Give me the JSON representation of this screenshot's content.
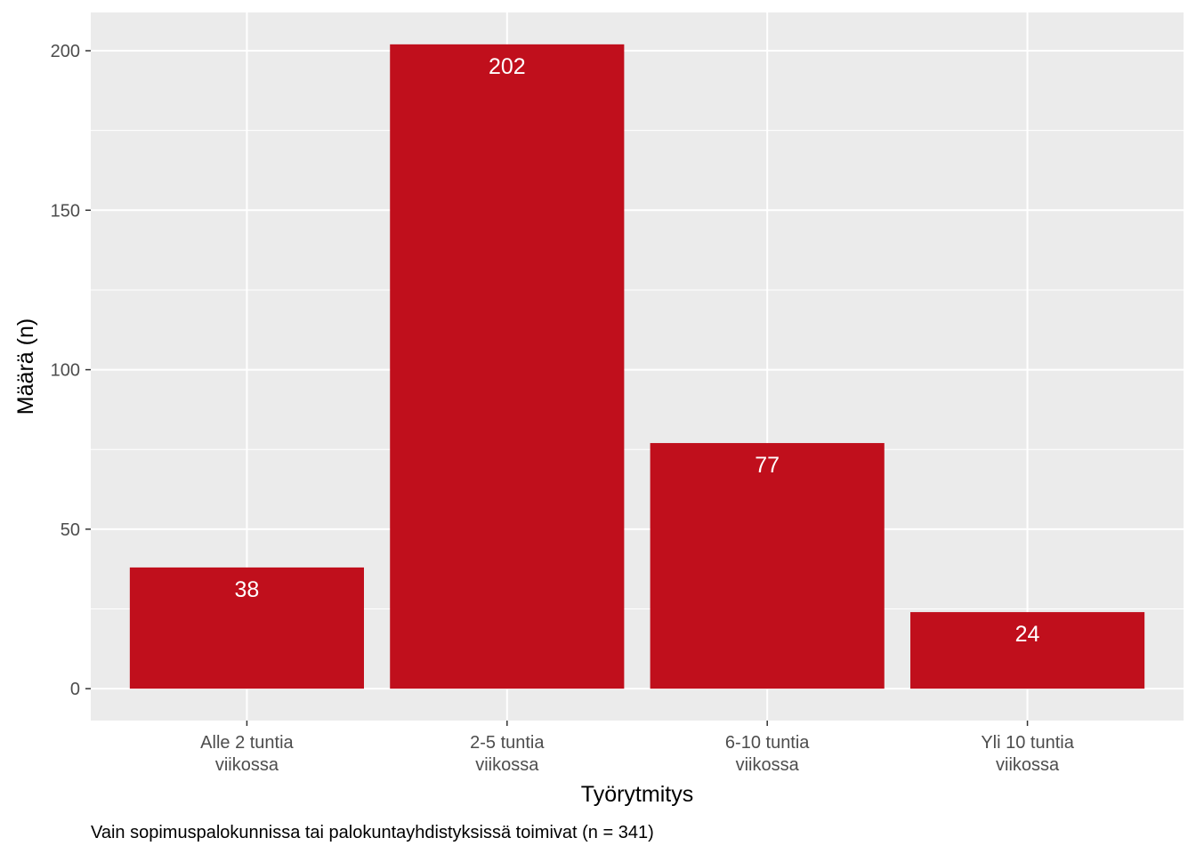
{
  "chart_data": {
    "type": "bar",
    "categories": [
      [
        "Alle 2 tuntia",
        "viikossa"
      ],
      [
        "2-5 tuntia",
        "viikossa"
      ],
      [
        "6-10 tuntia",
        "viikossa"
      ],
      [
        "Yli 10 tuntia",
        "viikossa"
      ]
    ],
    "values": [
      38,
      202,
      77,
      24
    ],
    "data_labels": [
      "38",
      "202",
      "77",
      "24"
    ],
    "xlabel": "Työrytmitys",
    "ylabel": "Määrä (n)",
    "ylim": [
      -10,
      212
    ],
    "yticks": [
      0,
      50,
      100,
      150,
      200
    ],
    "ytick_labels": [
      "0",
      "50",
      "100",
      "150",
      "200"
    ],
    "grid": true,
    "legend": "none",
    "caption": "Vain sopimuspalokunnissa tai palokuntayhdistyksissä toimivat (n = 341)",
    "colors": {
      "bar": "#c00f1c",
      "panel": "#ebebeb",
      "grid": "#ffffff"
    }
  }
}
